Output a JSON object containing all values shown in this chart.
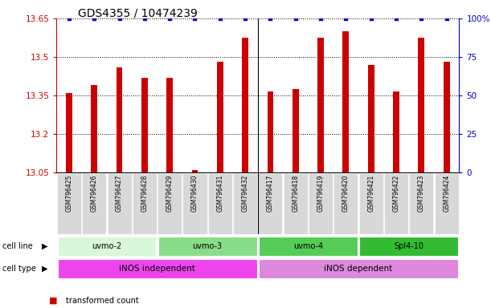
{
  "title": "GDS4355 / 10474239",
  "samples": [
    "GSM796425",
    "GSM796426",
    "GSM796427",
    "GSM796428",
    "GSM796429",
    "GSM796430",
    "GSM796431",
    "GSM796432",
    "GSM796417",
    "GSM796418",
    "GSM796419",
    "GSM796420",
    "GSM796421",
    "GSM796422",
    "GSM796423",
    "GSM796424"
  ],
  "transformed_counts": [
    13.36,
    13.39,
    13.46,
    13.42,
    13.42,
    13.06,
    13.48,
    13.575,
    13.365,
    13.375,
    13.575,
    13.6,
    13.47,
    13.365,
    13.575,
    13.48
  ],
  "percentile_ranks": [
    100,
    100,
    100,
    100,
    100,
    100,
    100,
    100,
    100,
    100,
    100,
    100,
    100,
    100,
    100,
    100
  ],
  "ylim_left": [
    13.05,
    13.65
  ],
  "ylim_right": [
    0,
    100
  ],
  "yticks_left": [
    13.05,
    13.2,
    13.35,
    13.5,
    13.65
  ],
  "yticks_right": [
    0,
    25,
    50,
    75,
    100
  ],
  "cell_lines": [
    {
      "label": "uvmo-2",
      "start": 0,
      "end": 4,
      "color": "#d9f7d9"
    },
    {
      "label": "uvmo-3",
      "start": 4,
      "end": 8,
      "color": "#88dd88"
    },
    {
      "label": "uvmo-4",
      "start": 8,
      "end": 12,
      "color": "#55cc55"
    },
    {
      "label": "Spl4-10",
      "start": 12,
      "end": 16,
      "color": "#33bb33"
    }
  ],
  "cell_types": [
    {
      "label": "iNOS independent",
      "start": 0,
      "end": 8,
      "color": "#ee44ee"
    },
    {
      "label": "iNOS dependent",
      "start": 8,
      "end": 16,
      "color": "#dd88dd"
    }
  ],
  "bar_color": "#cc0000",
  "dot_color": "#0000cc",
  "bar_width": 0.25,
  "background_color": "#ffffff",
  "left_axis_color": "#cc0000",
  "right_axis_color": "#0000cc",
  "title_fontsize": 10,
  "tick_fontsize": 7.5,
  "label_fontsize": 8
}
